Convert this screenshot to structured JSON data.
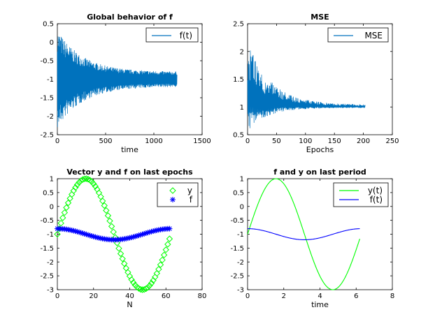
{
  "chart_data": [
    {
      "type": "line",
      "title": "Global behavior of f",
      "xlabel": "time",
      "ylabel": "",
      "xlim": [
        0,
        1500
      ],
      "ylim": [
        -2.5,
        0.5
      ],
      "xticks": [
        "0",
        "500",
        "1000",
        "1500"
      ],
      "yticks": [
        "0.5",
        "0",
        "-0.5",
        "-1",
        "-1.5",
        "-2",
        "-2.5"
      ],
      "legend": "top-right",
      "series": [
        {
          "name": "f(t)",
          "color": "#0072bd",
          "style": "line",
          "description": "oscillation around -1 with decaying envelope",
          "x_end": 1240,
          "center": -1,
          "amplitude_start": 1.35,
          "amplitude_end": 0.2,
          "oscillation_period": 12
        }
      ]
    },
    {
      "type": "line",
      "title": "MSE",
      "xlabel": "Epochs",
      "ylabel": "",
      "xlim": [
        0,
        250
      ],
      "ylim": [
        0.5,
        2.5
      ],
      "xticks": [
        "0",
        "50",
        "100",
        "150",
        "200",
        "250"
      ],
      "yticks": [
        "2.5",
        "2",
        "1.5",
        "1",
        "0.5"
      ],
      "legend": "top-right",
      "series": [
        {
          "name": "MSE",
          "color": "#0072bd",
          "style": "line",
          "description": "noisy decay toward 1",
          "x_end": 203,
          "center": 1.0,
          "amplitude_start": 1.15,
          "amplitude_end": 0.04
        }
      ]
    },
    {
      "type": "scatter",
      "title": "Vector y and f on last epochs",
      "xlabel": "N",
      "ylabel": "",
      "xlim": [
        0,
        80
      ],
      "ylim": [
        -3,
        1
      ],
      "xticks": [
        "0",
        "20",
        "40",
        "60",
        "80"
      ],
      "yticks": [
        "1",
        "0.5",
        "0",
        "-0.5",
        "-1",
        "-1.5",
        "-2",
        "-2.5",
        "-3"
      ],
      "legend": "top-right",
      "n_points": 63,
      "series": [
        {
          "name": "y",
          "marker": "diamond",
          "color": "#00ff00",
          "formula": "-1 + 2*sin(N/10)"
        },
        {
          "name": "f",
          "marker": "asterisk",
          "color": "#0000ff",
          "formula": "-1 + 0.2*cos(N/10)"
        }
      ]
    },
    {
      "type": "line",
      "title": "f and y on last period",
      "xlabel": "time",
      "ylabel": "",
      "xlim": [
        0,
        8
      ],
      "ylim": [
        -3,
        1
      ],
      "xticks": [
        "0",
        "2",
        "4",
        "6",
        "8"
      ],
      "yticks": [
        "1",
        "0.5",
        "0",
        "-0.5",
        "-1",
        "-1.5",
        "-2",
        "-2.5",
        "-3"
      ],
      "legend": "top-right",
      "t_range": [
        0,
        6.2
      ],
      "series": [
        {
          "name": "y(t)",
          "color": "#00ff00",
          "formula": "-1 + 2*sin(t)"
        },
        {
          "name": "f(t)",
          "color": "#0000ff",
          "formula": "-1 + 0.2*cos(t)"
        }
      ]
    }
  ]
}
